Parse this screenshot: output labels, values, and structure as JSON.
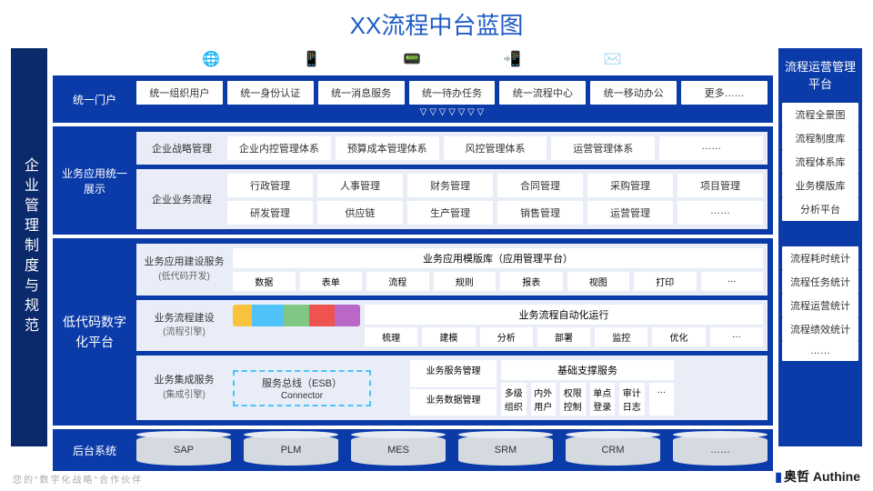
{
  "title": "XX流程中台蓝图",
  "left_label": "企业管理制度与规范",
  "colors": {
    "primary": "#0b3ba8",
    "dark": "#0b2a6b",
    "accent": "#1e5bc6",
    "light": "#e8edf7"
  },
  "icons": [
    "globe",
    "phone",
    "tablet",
    "mobile",
    "mail"
  ],
  "portal": {
    "label": "统一门户",
    "items": [
      "统一组织用户",
      "统一身份认证",
      "统一消息服务",
      "统一待办任务",
      "统一流程中心",
      "统一移动办公",
      "更多……"
    ]
  },
  "app_layer": {
    "label": "业务应用统一展示",
    "strategy": {
      "label": "企业战略管理",
      "items": [
        "企业内控管理体系",
        "预算成本管理体系",
        "风控管理体系",
        "运营管理体系",
        "……"
      ]
    },
    "biz": {
      "label": "企业业务流程",
      "row1": [
        "行政管理",
        "人事管理",
        "财务管理",
        "合同管理",
        "采购管理",
        "项目管理"
      ],
      "row2": [
        "研发管理",
        "供应链",
        "生产管理",
        "销售管理",
        "运营管理",
        "……"
      ]
    }
  },
  "lowcode": {
    "label": "低代码数字化平台",
    "build": {
      "label": "业务应用建设服务",
      "sub": "(低代码开发)",
      "hdr": "业务应用模版库（应用管理平台）",
      "items": [
        "数据",
        "表单",
        "流程",
        "规则",
        "报表",
        "视图",
        "打印",
        "…"
      ]
    },
    "process": {
      "label": "业务流程建设",
      "sub": "(流程引擎)",
      "hdr": "业务流程自动化运行",
      "items": [
        "梳理",
        "建模",
        "分析",
        "部署",
        "监控",
        "优化",
        "…"
      ]
    },
    "integ": {
      "label": "业务集成服务",
      "sub": "(集成引擎)",
      "esb": "服务总线（ESB）",
      "conn": "Connector",
      "svc": [
        "业务服务管理",
        "业务数据管理"
      ],
      "base_hdr": "基础支撑服务",
      "base": [
        "多级组织",
        "内外用户",
        "权限控制",
        "单点登录",
        "审计日志",
        "…"
      ]
    }
  },
  "backend": {
    "label": "后台系统",
    "items": [
      "SAP",
      "PLM",
      "MES",
      "SRM",
      "CRM",
      "……"
    ]
  },
  "right": {
    "title": "流程运营管理平台",
    "g1": [
      "流程全景图",
      "流程制度库",
      "流程体系库",
      "业务模版库",
      "分析平台"
    ],
    "g2": [
      "流程耗时统计",
      "流程任务统计",
      "流程运营统计",
      "流程绩效统计",
      "……"
    ]
  },
  "footer": "您的\"数字化战略\"合作伙伴",
  "brand": "奥哲 Authine"
}
